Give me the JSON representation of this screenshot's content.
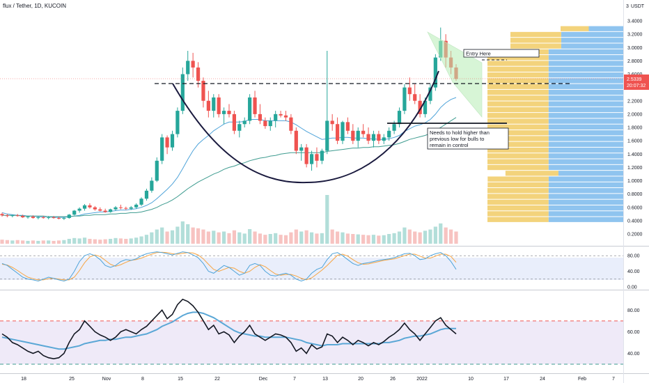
{
  "header": {
    "title": "flux / Tether, 1D, KUCOIN"
  },
  "price_axis": {
    "currency": "USDT",
    "ticks": [
      "3.4000",
      "3.2000",
      "3.0000",
      "2.8000",
      "2.6000",
      "2.4000",
      "2.2000",
      "2.0000",
      "1.8000",
      "1.6000",
      "1.4000",
      "1.2000",
      "1.0000",
      "0.8000",
      "0.6000",
      "0.4000",
      "0.2000"
    ],
    "current_price": "2.5339",
    "countdown": "20:07:32",
    "stub_label": "3"
  },
  "time_axis": {
    "labels": [
      "18",
      "25",
      "Nov",
      "8",
      "15",
      "22",
      "Dec",
      "7",
      "13",
      "20",
      "26",
      "2022",
      "10",
      "17",
      "24",
      "Feb",
      "7"
    ]
  },
  "annotations": {
    "entry": "Entry Here",
    "hold_line1": "Needs to hold higher than",
    "hold_line2": "previous low for bulls to",
    "hold_line3": "remain in control"
  },
  "stoch_axis": {
    "ticks": [
      "80.00",
      "40.00",
      "0.00"
    ]
  },
  "rsi_axis": {
    "ticks": [
      "80.00",
      "60.00",
      "40.00"
    ]
  },
  "colors": {
    "up": "#26a69a",
    "down": "#ef5350",
    "dark_line": "#1a1a3e",
    "ma_blue": "#4ea3d9",
    "ma_teal": "#3d9b8f"
  },
  "chart_data": {
    "type": "candlestick",
    "pair": "flux / Tether",
    "timeframe": "1D",
    "exchange": "KUCOIN",
    "ylim": [
      0.2,
      3.5
    ],
    "ohlc": [
      [
        0.5,
        0.52,
        0.46,
        0.48
      ],
      [
        0.48,
        0.5,
        0.45,
        0.47
      ],
      [
        0.47,
        0.49,
        0.45,
        0.48
      ],
      [
        0.48,
        0.5,
        0.46,
        0.47
      ],
      [
        0.47,
        0.49,
        0.44,
        0.45
      ],
      [
        0.45,
        0.47,
        0.43,
        0.46
      ],
      [
        0.46,
        0.48,
        0.43,
        0.44
      ],
      [
        0.44,
        0.46,
        0.42,
        0.45
      ],
      [
        0.45,
        0.47,
        0.43,
        0.44
      ],
      [
        0.44,
        0.47,
        0.42,
        0.45
      ],
      [
        0.45,
        0.47,
        0.43,
        0.44
      ],
      [
        0.44,
        0.46,
        0.42,
        0.43
      ],
      [
        0.43,
        0.45,
        0.41,
        0.44
      ],
      [
        0.44,
        0.5,
        0.43,
        0.49
      ],
      [
        0.49,
        0.56,
        0.48,
        0.55
      ],
      [
        0.55,
        0.6,
        0.52,
        0.58
      ],
      [
        0.58,
        0.65,
        0.55,
        0.63
      ],
      [
        0.63,
        0.66,
        0.58,
        0.6
      ],
      [
        0.6,
        0.62,
        0.55,
        0.57
      ],
      [
        0.57,
        0.6,
        0.54,
        0.55
      ],
      [
        0.55,
        0.58,
        0.52,
        0.53
      ],
      [
        0.53,
        0.58,
        0.52,
        0.57
      ],
      [
        0.57,
        0.62,
        0.55,
        0.6
      ],
      [
        0.6,
        0.64,
        0.57,
        0.59
      ],
      [
        0.59,
        0.61,
        0.56,
        0.58
      ],
      [
        0.58,
        0.62,
        0.56,
        0.6
      ],
      [
        0.6,
        0.66,
        0.58,
        0.64
      ],
      [
        0.64,
        0.75,
        0.62,
        0.73
      ],
      [
        0.73,
        0.88,
        0.7,
        0.85
      ],
      [
        0.85,
        1.05,
        0.82,
        1.0
      ],
      [
        1.0,
        1.35,
        0.98,
        1.3
      ],
      [
        1.3,
        1.7,
        1.25,
        1.65
      ],
      [
        1.65,
        1.68,
        1.4,
        1.5
      ],
      [
        1.5,
        1.75,
        1.45,
        1.7
      ],
      [
        1.7,
        2.1,
        1.65,
        2.05
      ],
      [
        2.05,
        2.7,
        2.0,
        2.6
      ],
      [
        2.6,
        2.95,
        2.5,
        2.8
      ],
      [
        2.8,
        2.92,
        2.55,
        2.7
      ],
      [
        2.7,
        2.78,
        2.4,
        2.5
      ],
      [
        2.5,
        2.55,
        2.1,
        2.2
      ],
      [
        2.2,
        2.35,
        1.95,
        2.05
      ],
      [
        2.05,
        2.3,
        1.95,
        2.25
      ],
      [
        2.25,
        2.3,
        1.95,
        2.0
      ],
      [
        2.0,
        2.1,
        1.85,
        2.05
      ],
      [
        2.05,
        2.15,
        1.95,
        2.0
      ],
      [
        2.0,
        2.05,
        1.7,
        1.75
      ],
      [
        1.75,
        1.9,
        1.65,
        1.85
      ],
      [
        1.85,
        1.95,
        1.8,
        1.9
      ],
      [
        1.9,
        2.3,
        1.85,
        2.25
      ],
      [
        2.25,
        2.35,
        1.95,
        2.0
      ],
      [
        2.0,
        2.15,
        1.85,
        1.9
      ],
      [
        1.9,
        1.95,
        1.78,
        1.82
      ],
      [
        1.82,
        1.95,
        1.75,
        1.9
      ],
      [
        1.9,
        2.05,
        1.8,
        2.0
      ],
      [
        2.0,
        2.05,
        1.95,
        1.98
      ],
      [
        1.98,
        2.05,
        1.9,
        1.95
      ],
      [
        1.95,
        2.0,
        1.7,
        1.75
      ],
      [
        1.75,
        1.8,
        1.4,
        1.45
      ],
      [
        1.45,
        1.55,
        1.3,
        1.5
      ],
      [
        1.5,
        1.55,
        1.2,
        1.25
      ],
      [
        1.25,
        1.45,
        1.15,
        1.4
      ],
      [
        1.4,
        1.5,
        1.2,
        1.3
      ],
      [
        1.3,
        1.48,
        1.25,
        1.45
      ],
      [
        1.45,
        2.95,
        1.4,
        1.9
      ],
      [
        1.9,
        2.0,
        1.75,
        1.85
      ],
      [
        1.85,
        1.95,
        1.55,
        1.6
      ],
      [
        1.6,
        1.9,
        1.55,
        1.88
      ],
      [
        1.88,
        1.95,
        1.7,
        1.75
      ],
      [
        1.75,
        1.85,
        1.55,
        1.6
      ],
      [
        1.6,
        1.8,
        1.5,
        1.75
      ],
      [
        1.75,
        1.85,
        1.65,
        1.7
      ],
      [
        1.7,
        1.8,
        1.55,
        1.6
      ],
      [
        1.6,
        1.75,
        1.5,
        1.7
      ],
      [
        1.7,
        1.75,
        1.55,
        1.6
      ],
      [
        1.6,
        1.7,
        1.55,
        1.65
      ],
      [
        1.65,
        1.8,
        1.6,
        1.75
      ],
      [
        1.75,
        1.9,
        1.7,
        1.85
      ],
      [
        1.85,
        2.1,
        1.8,
        2.05
      ],
      [
        2.05,
        2.45,
        2.0,
        2.4
      ],
      [
        2.4,
        2.55,
        2.2,
        2.3
      ],
      [
        2.3,
        2.45,
        2.15,
        2.2
      ],
      [
        2.2,
        2.3,
        1.95,
        2.0
      ],
      [
        2.0,
        2.25,
        1.95,
        2.2
      ],
      [
        2.2,
        2.45,
        2.15,
        2.4
      ],
      [
        2.4,
        2.9,
        2.35,
        2.85
      ],
      [
        2.85,
        3.3,
        2.8,
        3.1
      ],
      [
        3.1,
        3.2,
        2.7,
        2.85
      ],
      [
        2.85,
        2.95,
        2.6,
        2.7
      ],
      [
        2.7,
        2.75,
        2.5,
        2.53
      ]
    ],
    "volume": [
      10,
      9,
      8,
      9,
      8,
      7,
      8,
      7,
      8,
      8,
      7,
      8,
      9,
      12,
      14,
      13,
      15,
      12,
      11,
      10,
      11,
      12,
      14,
      13,
      12,
      13,
      15,
      18,
      22,
      28,
      35,
      40,
      30,
      33,
      42,
      55,
      48,
      40,
      38,
      35,
      30,
      32,
      28,
      30,
      26,
      33,
      28,
      25,
      36,
      30,
      25,
      22,
      24,
      26,
      22,
      21,
      28,
      35,
      30,
      33,
      28,
      25,
      26,
      120,
      35,
      30,
      28,
      25,
      24,
      23,
      22,
      21,
      22,
      20,
      21,
      24,
      26,
      30,
      40,
      35,
      30,
      28,
      32,
      35,
      42,
      50,
      40,
      35,
      30
    ],
    "ma_fast": [
      0.52,
      0.5,
      0.49,
      0.48,
      0.48,
      0.47,
      0.47,
      0.46,
      0.46,
      0.46,
      0.45,
      0.45,
      0.45,
      0.46,
      0.47,
      0.48,
      0.5,
      0.51,
      0.52,
      0.53,
      0.53,
      0.54,
      0.55,
      0.56,
      0.56,
      0.57,
      0.58,
      0.6,
      0.63,
      0.67,
      0.73,
      0.8,
      0.87,
      0.95,
      1.05,
      1.18,
      1.32,
      1.45,
      1.55,
      1.62,
      1.68,
      1.75,
      1.8,
      1.85,
      1.88,
      1.88,
      1.88,
      1.89,
      1.92,
      1.92,
      1.92,
      1.9,
      1.9,
      1.9,
      1.9,
      1.9,
      1.88,
      1.84,
      1.79,
      1.74,
      1.7,
      1.66,
      1.62,
      1.63,
      1.64,
      1.64,
      1.65,
      1.65,
      1.64,
      1.64,
      1.64,
      1.63,
      1.63,
      1.62,
      1.62,
      1.63,
      1.65,
      1.68,
      1.74,
      1.78,
      1.82,
      1.84,
      1.87,
      1.92,
      2.0,
      2.1,
      2.17,
      2.22,
      2.25
    ],
    "ma_slow": [
      0.48,
      0.48,
      0.48,
      0.48,
      0.47,
      0.47,
      0.47,
      0.47,
      0.47,
      0.46,
      0.46,
      0.46,
      0.46,
      0.46,
      0.47,
      0.47,
      0.48,
      0.48,
      0.49,
      0.49,
      0.49,
      0.5,
      0.5,
      0.51,
      0.51,
      0.52,
      0.52,
      0.53,
      0.55,
      0.57,
      0.6,
      0.64,
      0.67,
      0.71,
      0.76,
      0.82,
      0.88,
      0.93,
      0.98,
      1.02,
      1.06,
      1.1,
      1.13,
      1.17,
      1.2,
      1.22,
      1.25,
      1.27,
      1.3,
      1.32,
      1.34,
      1.35,
      1.37,
      1.38,
      1.4,
      1.41,
      1.42,
      1.42,
      1.42,
      1.42,
      1.42,
      1.42,
      1.42,
      1.44,
      1.45,
      1.46,
      1.47,
      1.48,
      1.49,
      1.49,
      1.5,
      1.5,
      1.51,
      1.51,
      1.52,
      1.53,
      1.54,
      1.56,
      1.59,
      1.62,
      1.64,
      1.66,
      1.68,
      1.71,
      1.75,
      1.8,
      1.85,
      1.9,
      1.95
    ],
    "stoch_k": [
      60,
      55,
      45,
      35,
      25,
      20,
      18,
      15,
      20,
      25,
      22,
      18,
      15,
      20,
      40,
      65,
      80,
      85,
      80,
      70,
      55,
      50,
      55,
      65,
      70,
      68,
      72,
      80,
      85,
      88,
      90,
      88,
      85,
      82,
      86,
      90,
      88,
      82,
      75,
      60,
      40,
      35,
      45,
      55,
      50,
      40,
      30,
      35,
      55,
      60,
      55,
      40,
      30,
      28,
      32,
      35,
      30,
      20,
      15,
      20,
      35,
      45,
      50,
      70,
      85,
      88,
      80,
      70,
      60,
      55,
      60,
      62,
      65,
      68,
      70,
      72,
      75,
      80,
      85,
      86,
      80,
      70,
      72,
      80,
      85,
      88,
      80,
      65,
      45
    ],
    "stoch_d": [
      58,
      56,
      50,
      42,
      33,
      25,
      21,
      18,
      18,
      21,
      22,
      20,
      18,
      18,
      25,
      42,
      62,
      77,
      82,
      78,
      68,
      58,
      53,
      57,
      63,
      68,
      70,
      74,
      79,
      84,
      88,
      89,
      88,
      85,
      84,
      86,
      88,
      87,
      82,
      72,
      58,
      45,
      40,
      45,
      50,
      48,
      40,
      35,
      40,
      50,
      57,
      52,
      42,
      33,
      30,
      32,
      32,
      28,
      22,
      18,
      23,
      33,
      43,
      55,
      68,
      81,
      84,
      79,
      70,
      62,
      58,
      59,
      62,
      65,
      68,
      70,
      72,
      76,
      80,
      84,
      84,
      79,
      74,
      74,
      79,
      84,
      84,
      78,
      63
    ],
    "rsi": [
      58,
      55,
      50,
      48,
      45,
      42,
      40,
      42,
      38,
      36,
      35,
      36,
      40,
      50,
      58,
      62,
      70,
      65,
      60,
      57,
      55,
      52,
      55,
      60,
      62,
      60,
      58,
      62,
      65,
      70,
      75,
      80,
      72,
      76,
      85,
      90,
      88,
      84,
      78,
      70,
      62,
      66,
      58,
      60,
      57,
      50,
      56,
      60,
      66,
      58,
      55,
      52,
      55,
      58,
      57,
      55,
      50,
      42,
      45,
      40,
      48,
      44,
      46,
      58,
      56,
      50,
      55,
      52,
      48,
      52,
      50,
      47,
      50,
      48,
      51,
      55,
      58,
      62,
      68,
      62,
      58,
      52,
      58,
      64,
      70,
      73,
      66,
      62,
      58
    ],
    "rsi_ma": [
      55,
      54,
      53,
      52,
      51,
      50,
      49,
      48,
      47,
      46,
      45,
      44,
      44,
      45,
      46,
      47,
      49,
      50,
      51,
      52,
      52,
      53,
      53,
      54,
      55,
      55,
      56,
      57,
      58,
      60,
      62,
      65,
      67,
      69,
      72,
      75,
      77,
      78,
      78,
      77,
      75,
      73,
      70,
      67,
      64,
      61,
      59,
      58,
      57,
      56,
      56,
      55,
      55,
      55,
      55,
      55,
      54,
      53,
      52,
      50,
      49,
      48,
      47,
      48,
      48,
      48,
      49,
      49,
      49,
      49,
      49,
      49,
      49,
      49,
      50,
      50,
      51,
      52,
      54,
      55,
      56,
      56,
      57,
      58,
      60,
      62,
      63,
      63,
      63
    ],
    "levels": {
      "support_dashed": 2.4,
      "entry_level": 2.8,
      "hold_level": 1.85
    },
    "stoch_range": [
      0,
      100
    ],
    "rsi_range": [
      30,
      95
    ],
    "rsi_levels": [
      70,
      30
    ]
  }
}
